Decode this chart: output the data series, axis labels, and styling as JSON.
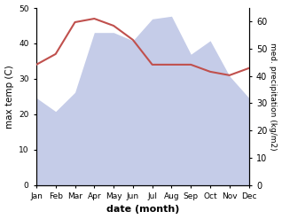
{
  "months": [
    "Jan",
    "Feb",
    "Mar",
    "Apr",
    "May",
    "Jun",
    "Jul",
    "Aug",
    "Sep",
    "Oct",
    "Nov",
    "Dec"
  ],
  "temperature": [
    34,
    37,
    46,
    47,
    45,
    41,
    34,
    34,
    34,
    32,
    31,
    33
  ],
  "precipitation": [
    32,
    27,
    34,
    56,
    56,
    53,
    61,
    62,
    48,
    53,
    40,
    32
  ],
  "temp_color": "#c0504d",
  "precip_fill_color": "#c5cce8",
  "precip_line_color": "#c5cce8",
  "ylim_left": [
    0,
    50
  ],
  "ylim_right": [
    0,
    65
  ],
  "yticks_left": [
    0,
    10,
    20,
    30,
    40,
    50
  ],
  "yticks_right": [
    0,
    10,
    20,
    30,
    40,
    50,
    60
  ],
  "xlabel": "date (month)",
  "ylabel_left": "max temp (C)",
  "ylabel_right": "med. precipitation (kg/m2)",
  "bg_color": "#ffffff",
  "figsize": [
    3.18,
    2.47
  ],
  "dpi": 100
}
